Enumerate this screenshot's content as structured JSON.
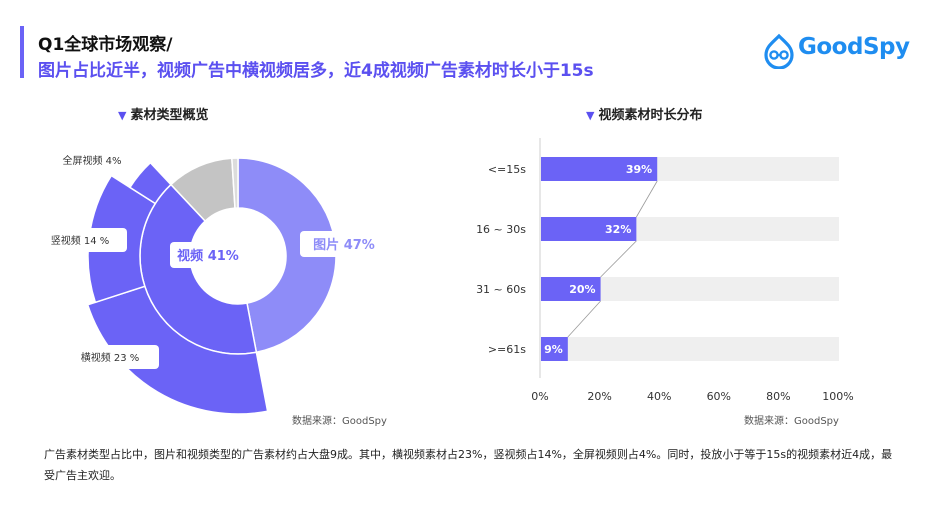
{
  "header": {
    "title_line1": "Q1全球市场观察/",
    "title_line2": "图片占比近半，视频广告中横视频居多，近4成视频广告素材时长小于15s",
    "logo_text": "GoodSpy"
  },
  "colors": {
    "accent": "#5b50f0",
    "image": "#8e8cf8",
    "video": "#6b63f6",
    "gray": "#c4c4c4",
    "track": "#efefef"
  },
  "left": {
    "section_title": "素材类型概览",
    "source": "数据来源：GoodSpy"
  },
  "right": {
    "section_title": "视频素材时长分布",
    "source": "数据来源：GoodSpy"
  },
  "footnote": "广告素材类型占比中，图片和视频类型的广告素材约占大盘9成。其中，横视频素材占23%，竖视频占14%，全屏视频则占4%。同时，投放小于等于15s的视频素材近4成，最受广告主欢迎。",
  "chart_data": [
    {
      "type": "pie",
      "title": "素材类型概览",
      "inner_ring": [
        {
          "name": "图片",
          "value": 47,
          "label": "图片 47%"
        },
        {
          "name": "视频",
          "value": 41,
          "label": "视频 41%"
        },
        {
          "name": "其他",
          "value": 11
        },
        {
          "name": "其他",
          "value": 1
        }
      ],
      "outer_ring": [
        {
          "name": "横视频",
          "value": 23,
          "label": "横视频  23 %"
        },
        {
          "name": "竖视频",
          "value": 14,
          "label": "竖视频  14 %"
        },
        {
          "name": "全屏视频",
          "value": 4,
          "label": "全屏视频  4%"
        }
      ]
    },
    {
      "type": "bar",
      "title": "视频素材时长分布",
      "orientation": "horizontal",
      "categories": [
        "<=15s",
        "16 ~ 30s",
        "31 ~ 60s",
        ">=61s"
      ],
      "values": [
        39,
        32,
        20,
        9
      ],
      "value_labels": [
        "39%",
        "32%",
        "20%",
        "9%"
      ],
      "xlim": [
        0,
        100
      ],
      "xticks": [
        "0%",
        "20%",
        "40%",
        "60%",
        "80%",
        "100%"
      ]
    }
  ]
}
